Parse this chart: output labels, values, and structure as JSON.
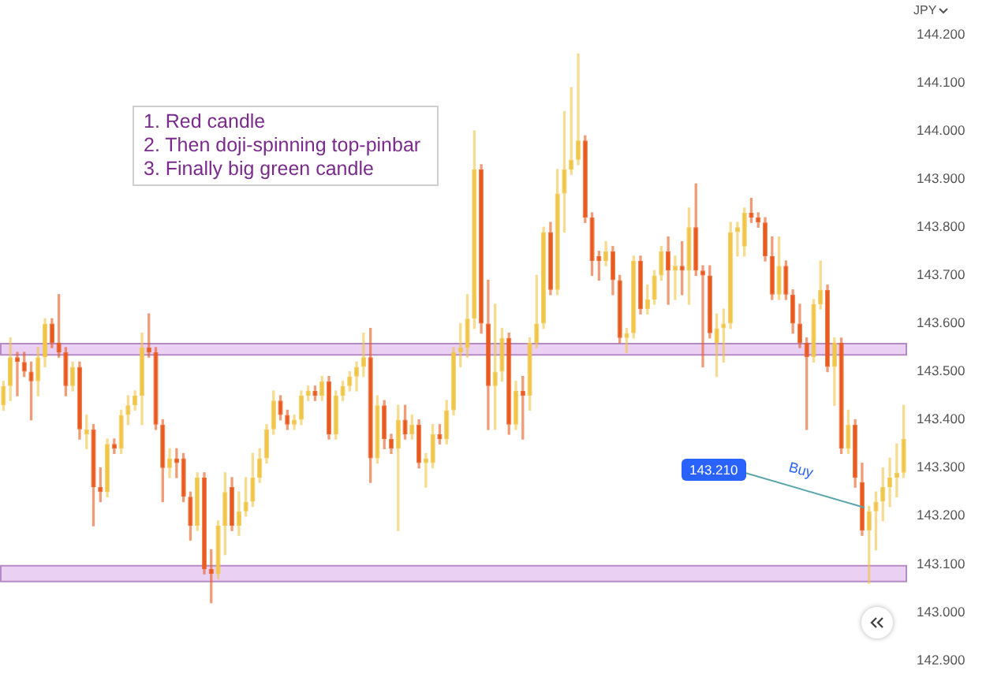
{
  "chart_data": {
    "type": "candlestick",
    "ylabel": "JPY",
    "categories": [
      null,
      null,
      null,
      null,
      null,
      null,
      null,
      null,
      null,
      null,
      null,
      null,
      null,
      null,
      null,
      null,
      null,
      null,
      null,
      null,
      null,
      null,
      null,
      null,
      null,
      null,
      null,
      null,
      null,
      null,
      null,
      null,
      null,
      null,
      null,
      null,
      null,
      null,
      null,
      null,
      null,
      null,
      null,
      null,
      null,
      null,
      null,
      null,
      null,
      null,
      null,
      null,
      null,
      null,
      null,
      null,
      null,
      null,
      null,
      null,
      null,
      null,
      null,
      null,
      null,
      null,
      null,
      null,
      null,
      null,
      null,
      null,
      null,
      null,
      null,
      null,
      null,
      null,
      null,
      null,
      null,
      null,
      null,
      null,
      null,
      null,
      null,
      null,
      null,
      null,
      null,
      null,
      null,
      null,
      null,
      null,
      null,
      null,
      null,
      null,
      null,
      null,
      null,
      null,
      null,
      null,
      null,
      null,
      null,
      null,
      null,
      null,
      null,
      null,
      null,
      null,
      null,
      null,
      null,
      null,
      null,
      null,
      null,
      null,
      null,
      null,
      null,
      null,
      null,
      null,
      null
    ],
    "ohlc": [
      [
        143.43,
        143.48,
        143.42,
        143.47
      ],
      [
        143.47,
        143.57,
        143.44,
        143.53
      ],
      [
        143.53,
        143.54,
        143.45,
        143.52
      ],
      [
        143.52,
        143.54,
        143.49,
        143.5
      ],
      [
        143.5,
        143.52,
        143.4,
        143.48
      ],
      [
        143.48,
        143.55,
        143.45,
        143.53
      ],
      [
        143.53,
        143.61,
        143.51,
        143.6
      ],
      [
        143.6,
        143.61,
        143.55,
        143.56
      ],
      [
        143.56,
        143.66,
        143.53,
        143.54
      ],
      [
        143.54,
        143.55,
        143.45,
        143.47
      ],
      [
        143.47,
        143.52,
        143.46,
        143.51
      ],
      [
        143.51,
        143.52,
        143.36,
        143.38
      ],
      [
        143.37,
        143.41,
        143.34,
        143.38
      ],
      [
        143.38,
        143.39,
        143.18,
        143.26
      ],
      [
        143.26,
        143.3,
        143.23,
        143.25
      ],
      [
        143.25,
        143.36,
        143.24,
        143.35
      ],
      [
        143.35,
        143.36,
        143.33,
        143.34
      ],
      [
        143.34,
        143.42,
        143.33,
        143.41
      ],
      [
        143.41,
        143.45,
        143.39,
        143.43
      ],
      [
        143.43,
        143.46,
        143.42,
        143.45
      ],
      [
        143.45,
        143.58,
        143.39,
        143.55
      ],
      [
        143.55,
        143.62,
        143.53,
        143.54
      ],
      [
        143.54,
        143.55,
        143.38,
        143.39
      ],
      [
        143.39,
        143.4,
        143.23,
        143.3
      ],
      [
        143.3,
        143.34,
        143.28,
        143.32
      ],
      [
        143.32,
        143.34,
        143.28,
        143.31
      ],
      [
        143.32,
        143.33,
        143.23,
        143.24
      ],
      [
        143.24,
        143.25,
        143.15,
        143.18
      ],
      [
        143.18,
        143.29,
        143.17,
        143.28
      ],
      [
        143.28,
        143.29,
        143.08,
        143.09
      ],
      [
        143.09,
        143.13,
        143.02,
        143.08
      ],
      [
        143.08,
        143.19,
        143.07,
        143.18
      ],
      [
        143.18,
        143.29,
        143.12,
        143.25
      ],
      [
        143.26,
        143.28,
        143.17,
        143.18
      ],
      [
        143.18,
        143.25,
        143.16,
        143.21
      ],
      [
        143.21,
        143.28,
        143.2,
        143.23
      ],
      [
        143.23,
        143.33,
        143.22,
        143.28
      ],
      [
        143.28,
        143.34,
        143.27,
        143.32
      ],
      [
        143.32,
        143.39,
        143.31,
        143.38
      ],
      [
        143.38,
        143.46,
        143.37,
        143.44
      ],
      [
        143.44,
        143.45,
        143.4,
        143.41
      ],
      [
        143.41,
        143.42,
        143.38,
        143.39
      ],
      [
        143.39,
        143.41,
        143.38,
        143.4
      ],
      [
        143.4,
        143.46,
        143.39,
        143.45
      ],
      [
        143.45,
        143.47,
        143.44,
        143.46
      ],
      [
        143.46,
        143.47,
        143.44,
        143.45
      ],
      [
        143.45,
        143.49,
        143.44,
        143.48
      ],
      [
        143.48,
        143.49,
        143.36,
        143.37
      ],
      [
        143.37,
        143.46,
        143.36,
        143.45
      ],
      [
        143.45,
        143.48,
        143.44,
        143.47
      ],
      [
        143.47,
        143.5,
        143.46,
        143.49
      ],
      [
        143.49,
        143.52,
        143.46,
        143.51
      ],
      [
        143.51,
        143.58,
        143.49,
        143.53
      ],
      [
        143.53,
        143.59,
        143.27,
        143.32
      ],
      [
        143.32,
        143.45,
        143.31,
        143.43
      ],
      [
        143.43,
        143.44,
        143.34,
        143.36
      ],
      [
        143.36,
        143.37,
        143.33,
        143.34
      ],
      [
        143.34,
        143.43,
        143.17,
        143.4
      ],
      [
        143.4,
        143.43,
        143.36,
        143.37
      ],
      [
        143.37,
        143.41,
        143.36,
        143.39
      ],
      [
        143.39,
        143.4,
        143.3,
        143.31
      ],
      [
        143.31,
        143.33,
        143.26,
        143.32
      ],
      [
        143.31,
        143.39,
        143.3,
        143.37
      ],
      [
        143.37,
        143.39,
        143.35,
        143.36
      ],
      [
        143.36,
        143.44,
        143.35,
        143.42
      ],
      [
        143.42,
        143.55,
        143.41,
        143.54
      ],
      [
        143.54,
        143.6,
        143.51,
        143.55
      ],
      [
        143.55,
        143.66,
        143.53,
        143.61
      ],
      [
        143.61,
        144.0,
        143.59,
        143.92
      ],
      [
        143.92,
        143.93,
        143.58,
        143.6
      ],
      [
        143.6,
        143.69,
        143.38,
        143.47
      ],
      [
        143.47,
        143.64,
        143.38,
        143.5
      ],
      [
        143.5,
        143.59,
        143.48,
        143.57
      ],
      [
        143.57,
        143.58,
        143.37,
        143.39
      ],
      [
        143.39,
        143.48,
        143.38,
        143.46
      ],
      [
        143.46,
        143.49,
        143.36,
        143.45
      ],
      [
        143.45,
        143.57,
        143.42,
        143.56
      ],
      [
        143.56,
        143.7,
        143.55,
        143.6
      ],
      [
        143.6,
        143.8,
        143.59,
        143.79
      ],
      [
        143.79,
        143.81,
        143.66,
        143.67
      ],
      [
        143.67,
        143.92,
        143.66,
        143.87
      ],
      [
        143.87,
        144.04,
        143.79,
        143.92
      ],
      [
        143.92,
        144.09,
        143.91,
        143.94
      ],
      [
        143.94,
        144.16,
        143.93,
        143.98
      ],
      [
        143.98,
        143.99,
        143.81,
        143.82
      ],
      [
        143.82,
        143.83,
        143.7,
        143.73
      ],
      [
        143.74,
        143.75,
        143.69,
        143.73
      ],
      [
        143.73,
        143.77,
        143.72,
        143.75
      ],
      [
        143.75,
        143.76,
        143.66,
        143.69
      ],
      [
        143.69,
        143.7,
        143.56,
        143.57
      ],
      [
        143.57,
        143.59,
        143.54,
        143.58
      ],
      [
        143.58,
        143.74,
        143.57,
        143.73
      ],
      [
        143.73,
        143.74,
        143.62,
        143.63
      ],
      [
        143.63,
        143.68,
        143.62,
        143.65
      ],
      [
        143.65,
        143.71,
        143.64,
        143.7
      ],
      [
        143.7,
        143.76,
        143.69,
        143.75
      ],
      [
        143.75,
        143.78,
        143.64,
        143.71
      ],
      [
        143.71,
        143.74,
        143.65,
        143.72
      ],
      [
        143.72,
        143.77,
        143.66,
        143.71
      ],
      [
        143.71,
        143.84,
        143.64,
        143.8
      ],
      [
        143.8,
        143.89,
        143.7,
        143.71
      ],
      [
        143.71,
        143.72,
        143.51,
        143.7
      ],
      [
        143.7,
        143.72,
        143.57,
        143.58
      ],
      [
        143.56,
        143.62,
        143.49,
        143.59
      ],
      [
        143.59,
        143.63,
        143.52,
        143.6
      ],
      [
        143.6,
        143.81,
        143.59,
        143.79
      ],
      [
        143.79,
        143.81,
        143.74,
        143.8
      ],
      [
        143.76,
        143.84,
        143.74,
        143.83
      ],
      [
        143.83,
        143.86,
        143.81,
        143.82
      ],
      [
        143.82,
        143.83,
        143.8,
        143.81
      ],
      [
        143.81,
        143.82,
        143.73,
        143.74
      ],
      [
        143.74,
        143.78,
        143.65,
        143.66
      ],
      [
        143.66,
        143.78,
        143.65,
        143.72
      ],
      [
        143.72,
        143.73,
        143.65,
        143.66
      ],
      [
        143.66,
        143.67,
        143.58,
        143.6
      ],
      [
        143.6,
        143.64,
        143.55,
        143.56
      ],
      [
        143.56,
        143.57,
        143.38,
        143.53
      ],
      [
        143.53,
        143.65,
        143.52,
        143.64
      ],
      [
        143.64,
        143.73,
        143.63,
        143.67
      ],
      [
        143.67,
        143.68,
        143.5,
        143.51
      ],
      [
        143.51,
        143.57,
        143.43,
        143.56
      ],
      [
        143.56,
        143.57,
        143.33,
        143.34
      ],
      [
        143.34,
        143.42,
        143.33,
        143.39
      ],
      [
        143.39,
        143.4,
        143.26,
        143.28
      ],
      [
        143.27,
        143.31,
        143.16,
        143.17
      ],
      [
        143.17,
        143.22,
        143.06,
        143.21
      ],
      [
        143.21,
        143.25,
        143.13,
        143.23
      ],
      [
        143.23,
        143.3,
        143.19,
        143.26
      ],
      [
        143.26,
        143.32,
        143.22,
        143.28
      ],
      [
        143.28,
        143.35,
        143.24,
        143.29
      ],
      [
        143.29,
        143.43,
        143.28,
        143.36
      ]
    ],
    "colors": [
      "#f0c548",
      "#f0c548",
      "#e85a1e",
      "#e85a1e",
      "#e85a1e",
      "#f0c548",
      "#f0c548",
      "#e85a1e",
      "#e85a1e",
      "#e85a1e",
      "#f0c548",
      "#e85a1e",
      "#f0c548",
      "#e85a1e",
      "#e85a1e",
      "#f0c548",
      "#e85a1e",
      "#f0c548",
      "#f0c548",
      "#f0c548",
      "#f0c548",
      "#e85a1e",
      "#e85a1e",
      "#e85a1e",
      "#f0c548",
      "#e85a1e",
      "#e85a1e",
      "#e85a1e",
      "#f0c548",
      "#e85a1e",
      "#e85a1e",
      "#f0c548",
      "#f0c548",
      "#e85a1e",
      "#f0c548",
      "#f0c548",
      "#f0c548",
      "#f0c548",
      "#f0c548",
      "#f0c548",
      "#e85a1e",
      "#e85a1e",
      "#f0c548",
      "#f0c548",
      "#f0c548",
      "#e85a1e",
      "#f0c548",
      "#e85a1e",
      "#f0c548",
      "#f0c548",
      "#f0c548",
      "#f0c548",
      "#f0c548",
      "#e85a1e",
      "#f0c548",
      "#e85a1e",
      "#e85a1e",
      "#f0c548",
      "#e85a1e",
      "#f0c548",
      "#e85a1e",
      "#f0c548",
      "#f0c548",
      "#e85a1e",
      "#f0c548",
      "#f0c548",
      "#f0c548",
      "#f0c548",
      "#f0c548",
      "#e85a1e",
      "#e85a1e",
      "#f0c548",
      "#f0c548",
      "#e85a1e",
      "#f0c548",
      "#e85a1e",
      "#f0c548",
      "#f0c548",
      "#f0c548",
      "#e85a1e",
      "#f0c548",
      "#f0c548",
      "#f0c548",
      "#f0c548",
      "#e85a1e",
      "#e85a1e",
      "#e85a1e",
      "#f0c548",
      "#e85a1e",
      "#e85a1e",
      "#f0c548",
      "#f0c548",
      "#e85a1e",
      "#f0c548",
      "#f0c548",
      "#f0c548",
      "#e85a1e",
      "#f0c548",
      "#e85a1e",
      "#f0c548",
      "#e85a1e",
      "#e85a1e",
      "#e85a1e",
      "#f0c548",
      "#f0c548",
      "#f0c548",
      "#f0c548",
      "#f0c548",
      "#e85a1e",
      "#e85a1e",
      "#e85a1e",
      "#e85a1e",
      "#f0c548",
      "#e85a1e",
      "#e85a1e",
      "#e85a1e",
      "#e85a1e",
      "#f0c548",
      "#f0c548",
      "#e85a1e",
      "#f0c548",
      "#e85a1e",
      "#f0c548",
      "#e85a1e",
      "#e85a1e",
      "#f0c548",
      "#f0c548",
      "#f0c548",
      "#f0c548",
      "#f0c548",
      "#f0c548"
    ],
    "ylim": [
      142.9,
      144.2
    ],
    "yticks": [
      {
        "value": 142.9,
        "label": "142.900"
      },
      {
        "value": 143.0,
        "label": "143.000"
      },
      {
        "value": 143.1,
        "label": "143.100"
      },
      {
        "value": 143.2,
        "label": "143.200"
      },
      {
        "value": 143.3,
        "label": "143.300"
      },
      {
        "value": 143.4,
        "label": "143.400"
      },
      {
        "value": 143.5,
        "label": "143.500"
      },
      {
        "value": 143.6,
        "label": "143.600"
      },
      {
        "value": 143.7,
        "label": "143.700"
      },
      {
        "value": 143.8,
        "label": "143.800"
      },
      {
        "value": 143.9,
        "label": "143.900"
      },
      {
        "value": 144.0,
        "label": "144.000"
      },
      {
        "value": 144.1,
        "label": "144.100"
      },
      {
        "value": 144.2,
        "label": "144.200"
      }
    ],
    "tick_labels": "y",
    "bands": [
      {
        "axis": "y",
        "from": 143.535,
        "to": 143.558,
        "color": "#ead0f2"
      },
      {
        "axis": "y",
        "from": 143.064,
        "to": 143.097,
        "color": "#ead0f2"
      }
    ],
    "annotations": [
      "1. Red candle",
      "2. Then doji-spinning top-pinbar",
      "3. Finally big green candle",
      "143.210",
      "Buy"
    ]
  }
}
